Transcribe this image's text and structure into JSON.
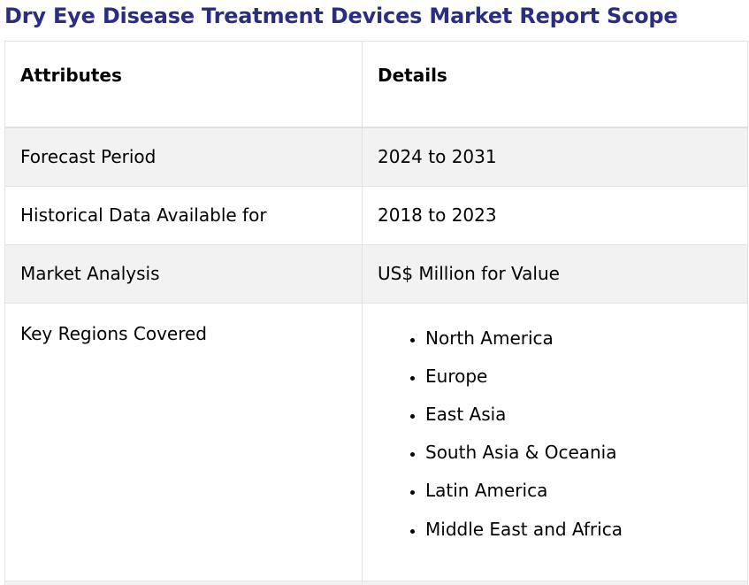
{
  "title": "Dry Eye Disease Treatment Devices Market Report Scope",
  "table": {
    "headers": [
      "Attributes",
      "Details"
    ],
    "rows": [
      {
        "attribute": "Forecast Period",
        "detail": "2024 to 2031"
      },
      {
        "attribute": "Historical Data Available for",
        "detail": "2018 to 2023"
      },
      {
        "attribute": "Market Analysis",
        "detail": "US$ Million for Value"
      }
    ],
    "regions_label": "Key Regions Covered",
    "regions": [
      "North America",
      "Europe",
      "East Asia",
      "South Asia & Oceania",
      "Latin America",
      "Middle East and Africa"
    ]
  },
  "colors": {
    "title": "#2b2d82",
    "shaded_row": "#f2f2f2",
    "border": "#e3e3e3"
  }
}
